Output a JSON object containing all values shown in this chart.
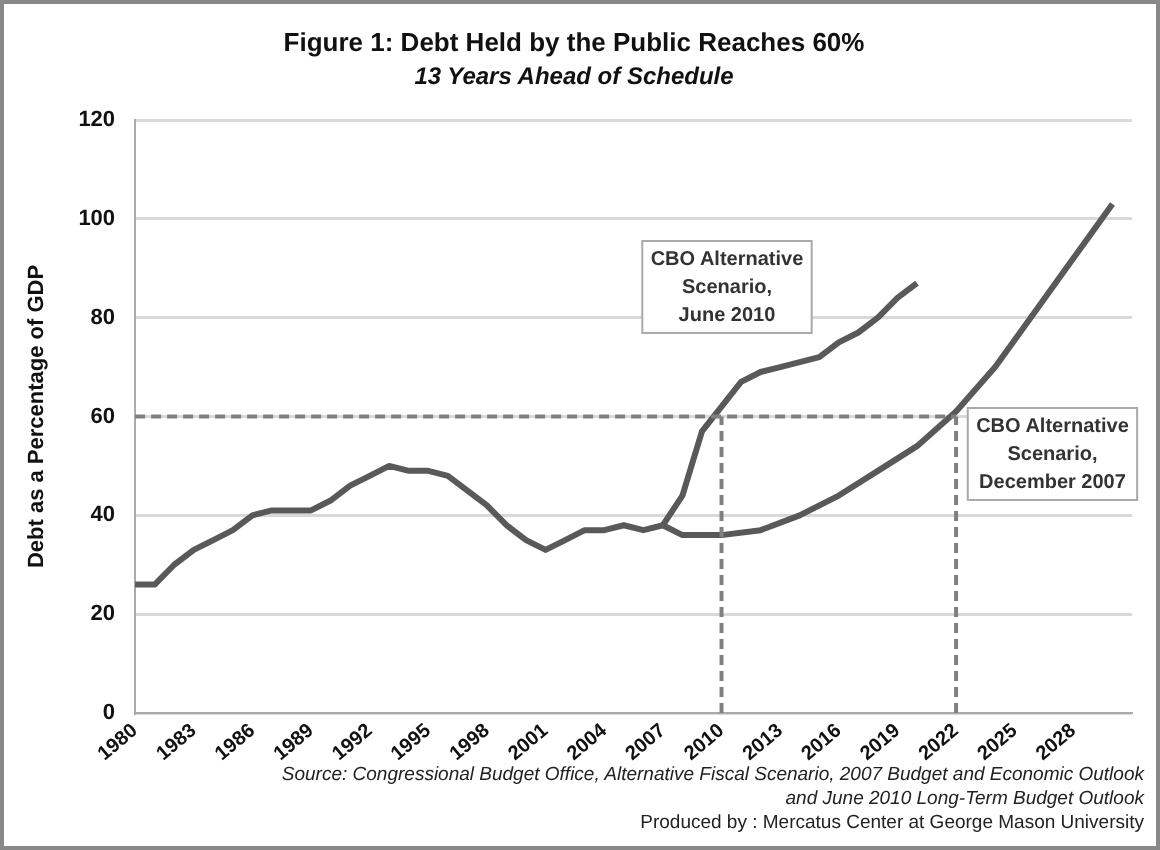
{
  "chart_data": {
    "type": "line",
    "title": "Figure 1: Debt Held by the Public Reaches 60%",
    "subtitle": "13 Years Ahead of Schedule",
    "ylabel": "Debt as a Percentage of GDP",
    "xlim": [
      1980,
      2031
    ],
    "xticks": [
      1980,
      1983,
      1986,
      1989,
      1992,
      1995,
      1998,
      2001,
      2004,
      2007,
      2010,
      2013,
      2016,
      2019,
      2022,
      2025,
      2028
    ],
    "ylim": [
      0,
      120
    ],
    "yticks": [
      0,
      20,
      40,
      60,
      80,
      100,
      120
    ],
    "grid": "y",
    "legend": false,
    "marker": "none",
    "line_style": "solid",
    "series": [
      {
        "color": "#595959",
        "x": [
          1980,
          1981,
          1982,
          1983,
          1984,
          1985,
          1986,
          1987,
          1988,
          1989,
          1990,
          1991,
          1992,
          1993,
          1994,
          1995,
          1996,
          1997,
          1998,
          1999,
          2000,
          2001,
          2002,
          2003,
          2004,
          2005,
          2006,
          2007
        ],
        "values": [
          26,
          26,
          30,
          33,
          35,
          37,
          40,
          41,
          41,
          41,
          43,
          46,
          48,
          50,
          49,
          49,
          48,
          45,
          42,
          38,
          35,
          33,
          35,
          37,
          37,
          38,
          37,
          38
        ]
      },
      {
        "name": "CBO Alternative\nScenario,\nJune 2010",
        "color": "#595959",
        "x": [
          2007,
          2008,
          2009,
          2010,
          2011,
          2012,
          2013,
          2014,
          2015,
          2016,
          2017,
          2018,
          2019,
          2020
        ],
        "values": [
          38,
          44,
          57,
          62,
          67,
          69,
          70,
          71,
          72,
          75,
          77,
          80,
          84,
          87
        ]
      },
      {
        "name": "CBO Alternative\nScenario,\nDecember 2007",
        "color": "#595959",
        "x": [
          2007,
          2008,
          2010,
          2012,
          2014,
          2016,
          2018,
          2020,
          2022,
          2024,
          2026,
          2028,
          2030
        ],
        "values": [
          38,
          36,
          36,
          37,
          40,
          44,
          49,
          54,
          61,
          70,
          81,
          92,
          103
        ]
      }
    ],
    "ref_lines": [
      {
        "axis": "y",
        "value": 60,
        "color": "#808080",
        "line_style": "dashed"
      },
      {
        "axis": "x",
        "value": 2010,
        "color": "#808080",
        "line_style": "dashed"
      },
      {
        "axis": "x",
        "value": 2022,
        "color": "#808080",
        "line_style": "dashed"
      }
    ],
    "annotations": [
      "Source:  Congressional Budget Office, Alternative Fiscal Scenario,  2007 Budget and Economic Outlook and June 2010  Long-Term Budget  Outlook",
      "Produced by : Mercatus Center at George Mason University"
    ]
  }
}
